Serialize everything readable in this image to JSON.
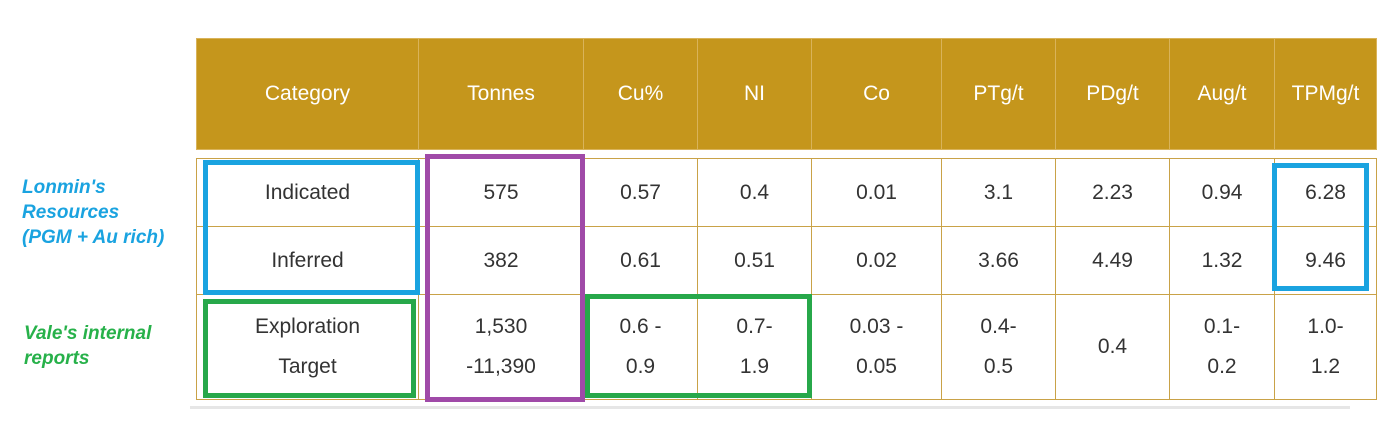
{
  "annotations": {
    "lonmin": [
      "Lonmin's",
      "Resources",
      "(PGM + Au rich)"
    ],
    "vale": [
      "Vale's internal",
      "reports"
    ],
    "colors": {
      "blue": "#1aa3e0",
      "green": "#27a84a",
      "purple": "#a04aa8",
      "header": "#c5961c"
    }
  },
  "table": {
    "headers": [
      [
        "Category"
      ],
      [
        "Tonnes"
      ],
      [
        "Cu",
        "%"
      ],
      [
        "NI"
      ],
      [
        "Co"
      ],
      [
        "PT",
        "g/t"
      ],
      [
        "PD",
        "g/t"
      ],
      [
        "Au",
        "g/t"
      ],
      [
        "TPM",
        "g/t"
      ]
    ],
    "rows": [
      [
        [
          "Indicated"
        ],
        [
          "575"
        ],
        [
          "0.57"
        ],
        [
          "0.4"
        ],
        [
          "0.01"
        ],
        [
          "3.1"
        ],
        [
          "2.23"
        ],
        [
          "0.94"
        ],
        [
          "6.28"
        ]
      ],
      [
        [
          "Inferred"
        ],
        [
          "382"
        ],
        [
          "0.61"
        ],
        [
          "0.51"
        ],
        [
          "0.02"
        ],
        [
          "3.66"
        ],
        [
          "4.49"
        ],
        [
          "1.32"
        ],
        [
          "9.46"
        ]
      ],
      [
        [
          "Exploration",
          "Target"
        ],
        [
          "1,530",
          "-11,390"
        ],
        [
          "0.6 -",
          "0.9"
        ],
        [
          "0.7-",
          "1.9"
        ],
        [
          "0.03 -",
          "0.05"
        ],
        [
          "0.4-",
          "0.5"
        ],
        [
          "0.4"
        ],
        [
          "0.1-",
          "0.2"
        ],
        [
          "1.0-",
          "1.2"
        ]
      ]
    ]
  }
}
